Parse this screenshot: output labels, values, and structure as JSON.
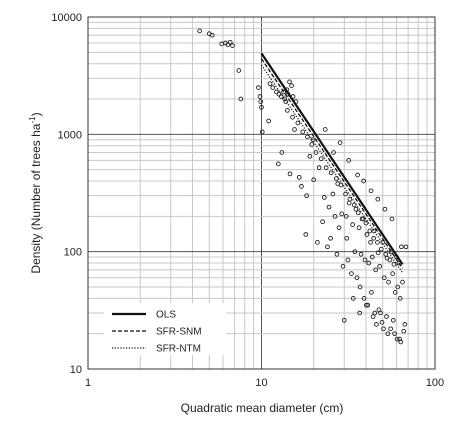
{
  "chart_data": {
    "type": "scatter",
    "title": "",
    "xlabel": "Quadratic mean diameter (cm)",
    "ylabel": "Density (Number of trees  ha",
    "ylabel_superscript": "-1",
    "ylabel_suffix": ")",
    "x_scale": "log",
    "y_scale": "log",
    "xlim": [
      1,
      100
    ],
    "ylim": [
      10,
      10000
    ],
    "x_ticks": [
      "1",
      "10",
      "100"
    ],
    "y_ticks": [
      "10",
      "100",
      "1000",
      "10000"
    ],
    "grid": true,
    "legend_position": "bottom-left",
    "series": [
      {
        "name": "OLS",
        "kind": "line",
        "style": "solid",
        "x": [
          10,
          65
        ],
        "y": [
          4900,
          78
        ]
      },
      {
        "name": "SFR-SNM",
        "kind": "line",
        "style": "dashed",
        "x": [
          10,
          65
        ],
        "y": [
          4400,
          72
        ]
      },
      {
        "name": "SFR-NTM",
        "kind": "line",
        "style": "dotted",
        "x": [
          10,
          65
        ],
        "y": [
          3900,
          66
        ]
      },
      {
        "name": "",
        "kind": "points",
        "marker": "open-circle",
        "x": [
          4.4,
          5.0,
          5.2,
          5.9,
          6.2,
          6.4,
          6.6,
          6.8,
          7.4,
          7.6,
          9.6,
          9.8,
          9.9,
          10.0,
          10.1,
          11.2,
          11.6,
          12.2,
          12.6,
          13.0,
          13.4,
          13.6,
          13.8,
          14.0,
          14.2,
          14.5,
          14.9,
          15.2,
          15.8,
          13.1,
          14.1,
          15.1,
          16.2,
          17.3,
          18.4,
          19.5,
          20.6,
          22.1,
          23.6,
          25.2,
          27.0,
          28.7,
          30.5,
          32.3,
          34.2,
          36.1,
          38.0,
          40.0,
          42.1,
          44.3,
          46.6,
          49.0,
          52.0,
          55.0,
          58.0,
          62.0,
          64.0,
          11.0,
          12.5,
          14.6,
          16.5,
          17.0,
          18.2,
          19.0,
          20.0,
          21.5,
          23.0,
          24.5,
          25.8,
          27.5,
          29.0,
          30.8,
          32.0,
          33.5,
          35.0,
          36.5,
          38.5,
          40.5,
          42.5,
          44.5,
          47.0,
          50.0,
          53.0,
          56.0,
          60.0,
          15.5,
          18.0,
          21.0,
          24.0,
          26.5,
          28.0,
          31.0,
          34.5,
          37.5,
          39.5,
          41.5,
          43.5,
          45.5,
          48.0,
          51.0,
          54.0,
          57.0,
          59.0,
          61.0,
          63.0,
          65.0,
          68.0,
          22.5,
          25.0,
          27.2,
          29.5,
          31.5,
          33.0,
          35.5,
          37.0,
          39.0,
          41.0,
          43.0,
          45.0,
          47.5,
          49.5,
          52.5,
          55.5,
          58.5,
          62.5,
          66.0,
          30.0,
          33.8,
          36.8,
          40.2,
          44.0,
          46.0,
          48.5,
          50.5,
          53.5,
          57.5,
          60.5,
          63.5,
          67.0,
          19.8,
          23.3,
          26.0,
          28.4,
          31.8,
          35.8,
          38.8,
          42.8,
          46.8,
          51.5,
          56.5
        ],
        "y": [
          7600,
          7200,
          7000,
          5900,
          6000,
          5800,
          6100,
          5700,
          3500,
          2000,
          2500,
          2100,
          1900,
          1700,
          1050,
          2700,
          2500,
          2300,
          2200,
          2100,
          2300,
          2000,
          1900,
          2400,
          2200,
          2800,
          2600,
          2100,
          1900,
          700,
          1600,
          1400,
          1250,
          1050,
          950,
          820,
          700,
          620,
          520,
          470,
          420,
          370,
          310,
          280,
          250,
          215,
          190,
          175,
          150,
          130,
          120,
          105,
          95,
          85,
          78,
          80,
          110,
          1300,
          560,
          460,
          430,
          360,
          300,
          650,
          410,
          520,
          290,
          240,
          310,
          380,
          210,
          200,
          260,
          170,
          230,
          160,
          190,
          140,
          120,
          150,
          98,
          120,
          88,
          100,
          90,
          1100,
          140,
          120,
          110,
          200,
          160,
          130,
          100,
          95,
          85,
          80,
          90,
          70,
          75,
          60,
          55,
          65,
          45,
          50,
          40,
          55,
          110,
          180,
          130,
          95,
          75,
          85,
          65,
          60,
          50,
          40,
          35,
          45,
          30,
          32,
          25,
          28,
          22,
          20,
          18,
          21,
          26,
          40,
          30,
          35,
          28,
          24,
          30,
          22,
          20,
          26,
          18,
          17,
          24,
          900,
          1100,
          700,
          850,
          600,
          450,
          400,
          330,
          280,
          230,
          190
        ]
      }
    ]
  }
}
